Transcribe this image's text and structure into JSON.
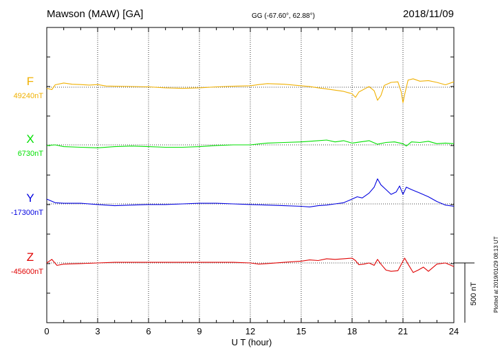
{
  "chart_data": {
    "type": "line",
    "title": "Mawson (MAW)  [GA]",
    "subtitle": "GG (-67.60°,  62.88°)",
    "date": "2018/11/09",
    "xlabel": "U T (hour)",
    "xlim": [
      0,
      24
    ],
    "xticks": [
      "0",
      "3",
      "6",
      "9",
      "12",
      "15",
      "18",
      "21",
      "24"
    ],
    "grid": true,
    "scale_bar": "500 nT",
    "plotted_note": "Plotted at 2019/01/29 08:13 UT",
    "series": [
      {
        "name": "F",
        "baseline": "49240nT",
        "color": "#f0b000",
        "points": [
          [
            0,
            -10
          ],
          [
            0.3,
            -20
          ],
          [
            0.5,
            20
          ],
          [
            1,
            35
          ],
          [
            1.5,
            25
          ],
          [
            2,
            22
          ],
          [
            2.5,
            18
          ],
          [
            3,
            22
          ],
          [
            3.5,
            10
          ],
          [
            4,
            8
          ],
          [
            5,
            6
          ],
          [
            6,
            3
          ],
          [
            7,
            -5
          ],
          [
            8,
            -10
          ],
          [
            9,
            -5
          ],
          [
            10,
            3
          ],
          [
            11,
            8
          ],
          [
            12,
            12
          ],
          [
            12.5,
            22
          ],
          [
            13,
            30
          ],
          [
            14,
            25
          ],
          [
            15,
            12
          ],
          [
            15.5,
            5
          ],
          [
            16,
            -5
          ],
          [
            16.5,
            -15
          ],
          [
            17,
            -25
          ],
          [
            17.5,
            -35
          ],
          [
            18,
            -55
          ],
          [
            18.2,
            -85
          ],
          [
            18.4,
            -40
          ],
          [
            18.8,
            -10
          ],
          [
            19,
            5
          ],
          [
            19.3,
            -30
          ],
          [
            19.5,
            -110
          ],
          [
            19.7,
            -70
          ],
          [
            19.9,
            15
          ],
          [
            20.3,
            40
          ],
          [
            20.7,
            45
          ],
          [
            20.9,
            -40
          ],
          [
            21.0,
            -130
          ],
          [
            21.1,
            -60
          ],
          [
            21.3,
            60
          ],
          [
            21.6,
            70
          ],
          [
            22,
            50
          ],
          [
            22.5,
            55
          ],
          [
            23,
            40
          ],
          [
            23.5,
            20
          ],
          [
            24,
            45
          ]
        ]
      },
      {
        "name": "X",
        "baseline": "6730nT",
        "color": "#00e000",
        "points": [
          [
            0,
            -5
          ],
          [
            0.5,
            0
          ],
          [
            1,
            -15
          ],
          [
            2,
            -20
          ],
          [
            3,
            -25
          ],
          [
            4,
            -15
          ],
          [
            5,
            -10
          ],
          [
            6,
            -15
          ],
          [
            7,
            -20
          ],
          [
            8,
            -20
          ],
          [
            9,
            -15
          ],
          [
            10,
            -5
          ],
          [
            11,
            0
          ],
          [
            12,
            0
          ],
          [
            13,
            15
          ],
          [
            14,
            20
          ],
          [
            15,
            25
          ],
          [
            15.5,
            30
          ],
          [
            16,
            35
          ],
          [
            16.5,
            40
          ],
          [
            17,
            25
          ],
          [
            17.5,
            35
          ],
          [
            18,
            15
          ],
          [
            18.5,
            25
          ],
          [
            19,
            35
          ],
          [
            19.5,
            5
          ],
          [
            20,
            20
          ],
          [
            20.5,
            25
          ],
          [
            21,
            10
          ],
          [
            21.2,
            -10
          ],
          [
            21.5,
            25
          ],
          [
            22,
            20
          ],
          [
            22.5,
            30
          ],
          [
            23,
            10
          ],
          [
            23.5,
            15
          ],
          [
            24,
            10
          ]
        ]
      },
      {
        "name": "Y",
        "baseline": "-17300nT",
        "color": "#0000e0",
        "points": [
          [
            0,
            40
          ],
          [
            0.5,
            10
          ],
          [
            1,
            5
          ],
          [
            2,
            5
          ],
          [
            3,
            -5
          ],
          [
            4,
            -15
          ],
          [
            5,
            -10
          ],
          [
            6,
            -5
          ],
          [
            7,
            -5
          ],
          [
            8,
            0
          ],
          [
            9,
            5
          ],
          [
            10,
            5
          ],
          [
            11,
            0
          ],
          [
            12,
            -5
          ],
          [
            13,
            -10
          ],
          [
            14,
            -15
          ],
          [
            15,
            -20
          ],
          [
            15.5,
            -25
          ],
          [
            16,
            -15
          ],
          [
            16.5,
            -10
          ],
          [
            17,
            0
          ],
          [
            17.5,
            10
          ],
          [
            18,
            40
          ],
          [
            18.3,
            60
          ],
          [
            18.6,
            50
          ],
          [
            19,
            90
          ],
          [
            19.3,
            140
          ],
          [
            19.5,
            210
          ],
          [
            19.7,
            160
          ],
          [
            20,
            120
          ],
          [
            20.3,
            80
          ],
          [
            20.6,
            100
          ],
          [
            20.8,
            150
          ],
          [
            21,
            80
          ],
          [
            21.2,
            140
          ],
          [
            21.5,
            120
          ],
          [
            22,
            90
          ],
          [
            22.5,
            60
          ],
          [
            23,
            20
          ],
          [
            23.5,
            -10
          ],
          [
            24,
            -20
          ]
        ]
      },
      {
        "name": "Z",
        "baseline": "-45600nT",
        "color": "#e00000",
        "points": [
          [
            0,
            0
          ],
          [
            0.3,
            30
          ],
          [
            0.6,
            -20
          ],
          [
            1,
            -10
          ],
          [
            2,
            -5
          ],
          [
            3,
            0
          ],
          [
            4,
            5
          ],
          [
            5,
            5
          ],
          [
            6,
            5
          ],
          [
            7,
            5
          ],
          [
            8,
            5
          ],
          [
            9,
            5
          ],
          [
            10,
            5
          ],
          [
            11,
            5
          ],
          [
            12,
            0
          ],
          [
            12.5,
            -10
          ],
          [
            13,
            -5
          ],
          [
            14,
            5
          ],
          [
            15,
            15
          ],
          [
            15.5,
            25
          ],
          [
            16,
            20
          ],
          [
            16.5,
            35
          ],
          [
            17,
            30
          ],
          [
            17.5,
            35
          ],
          [
            18,
            40
          ],
          [
            18.2,
            20
          ],
          [
            18.4,
            -15
          ],
          [
            18.7,
            -10
          ],
          [
            19,
            0
          ],
          [
            19.3,
            -20
          ],
          [
            19.5,
            30
          ],
          [
            19.7,
            -10
          ],
          [
            20,
            -60
          ],
          [
            20.3,
            -70
          ],
          [
            20.7,
            -65
          ],
          [
            21,
            15
          ],
          [
            21.1,
            40
          ],
          [
            21.3,
            -10
          ],
          [
            21.6,
            -80
          ],
          [
            21.9,
            -60
          ],
          [
            22.2,
            -35
          ],
          [
            22.5,
            -70
          ],
          [
            23,
            -10
          ],
          [
            23.5,
            0
          ],
          [
            24,
            -30
          ]
        ]
      }
    ]
  }
}
